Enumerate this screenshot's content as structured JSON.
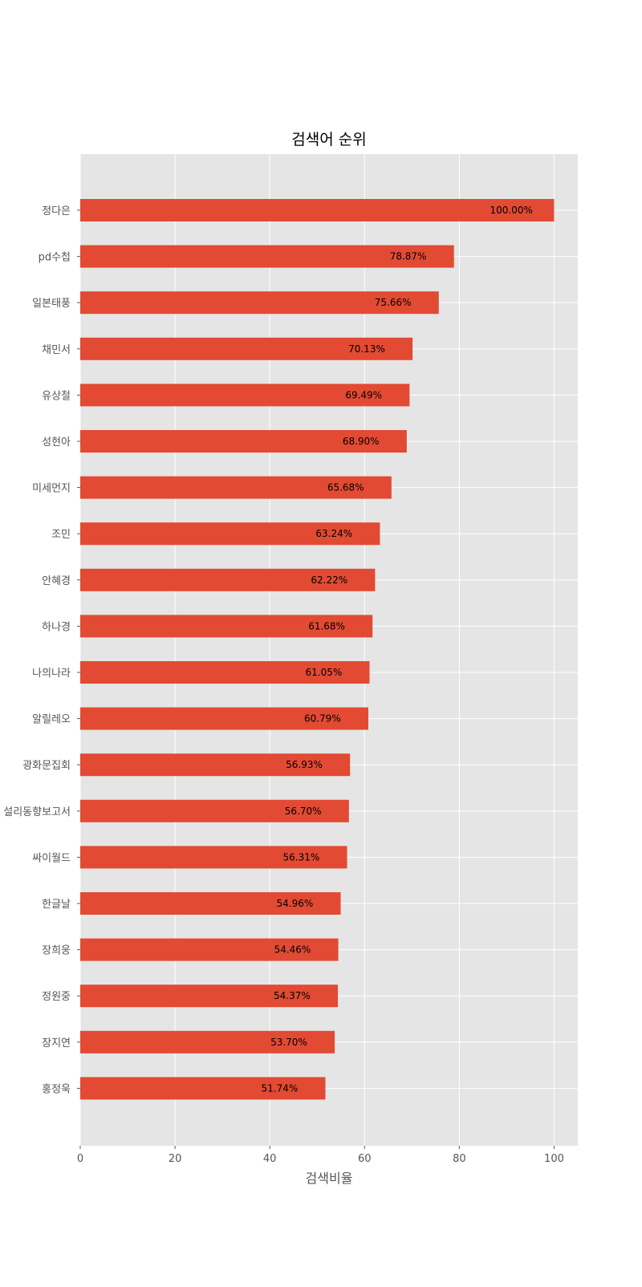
{
  "chart_data": {
    "type": "bar",
    "orientation": "horizontal",
    "title": "검색어 순위",
    "xlabel": "검색비율",
    "ylabel": "",
    "xlim": [
      0,
      105
    ],
    "xticks": [
      0,
      20,
      40,
      60,
      80,
      100
    ],
    "grid": true,
    "categories": [
      "정다은",
      "pd수첩",
      "일본태풍",
      "채민서",
      "유상철",
      "성현아",
      "미세먼지",
      "조민",
      "안혜경",
      "하나경",
      "나의나라",
      "알릴레오",
      "광화문집회",
      "설리동향보고서",
      "싸이월드",
      "한글날",
      "장희웅",
      "정원중",
      "장지연",
      "홍정욱"
    ],
    "values": [
      100.0,
      78.87,
      75.66,
      70.13,
      69.49,
      68.9,
      65.68,
      63.24,
      62.22,
      61.68,
      61.05,
      60.79,
      56.93,
      56.7,
      56.31,
      54.96,
      54.46,
      54.37,
      53.7,
      51.74
    ],
    "value_labels": [
      "100.00%",
      "78.87%",
      "75.66%",
      "70.13%",
      "69.49%",
      "68.90%",
      "65.68%",
      "63.24%",
      "62.22%",
      "61.68%",
      "61.05%",
      "60.79%",
      "56.93%",
      "56.70%",
      "56.31%",
      "54.96%",
      "54.46%",
      "54.37%",
      "53.70%",
      "51.74%"
    ],
    "colors": {
      "bar": "#e24a33",
      "plot_bg": "#e5e5e5",
      "grid": "#ffffff"
    }
  }
}
